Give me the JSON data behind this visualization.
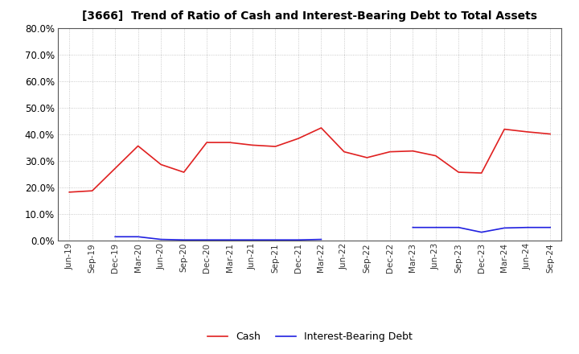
{
  "title": "[3666]  Trend of Ratio of Cash and Interest-Bearing Debt to Total Assets",
  "x_labels": [
    "Jun-19",
    "Sep-19",
    "Dec-19",
    "Mar-20",
    "Jun-20",
    "Sep-20",
    "Dec-20",
    "Mar-21",
    "Jun-21",
    "Sep-21",
    "Dec-21",
    "Mar-22",
    "Jun-22",
    "Sep-22",
    "Dec-22",
    "Mar-23",
    "Jun-23",
    "Sep-23",
    "Dec-23",
    "Mar-24",
    "Jun-24",
    "Sep-24"
  ],
  "cash": [
    0.183,
    0.188,
    null,
    0.357,
    0.287,
    0.258,
    0.37,
    0.37,
    0.36,
    0.355,
    0.385,
    0.425,
    0.335,
    0.313,
    0.335,
    0.338,
    0.32,
    0.258,
    0.255,
    0.42,
    0.41,
    0.402
  ],
  "ibd": [
    null,
    null,
    0.015,
    0.015,
    0.005,
    0.003,
    0.003,
    0.003,
    0.003,
    0.003,
    0.003,
    0.005,
    null,
    null,
    null,
    0.05,
    0.05,
    0.05,
    0.032,
    0.048,
    0.05,
    0.05
  ],
  "cash_color": "#e02020",
  "ibd_color": "#2020e0",
  "ylim": [
    0.0,
    0.8
  ],
  "yticks": [
    0.0,
    0.1,
    0.2,
    0.3,
    0.4,
    0.5,
    0.6,
    0.7,
    0.8
  ],
  "legend_cash": "Cash",
  "legend_ibd": "Interest-Bearing Debt",
  "bg_color": "#ffffff",
  "grid_color": "#aaaaaa"
}
